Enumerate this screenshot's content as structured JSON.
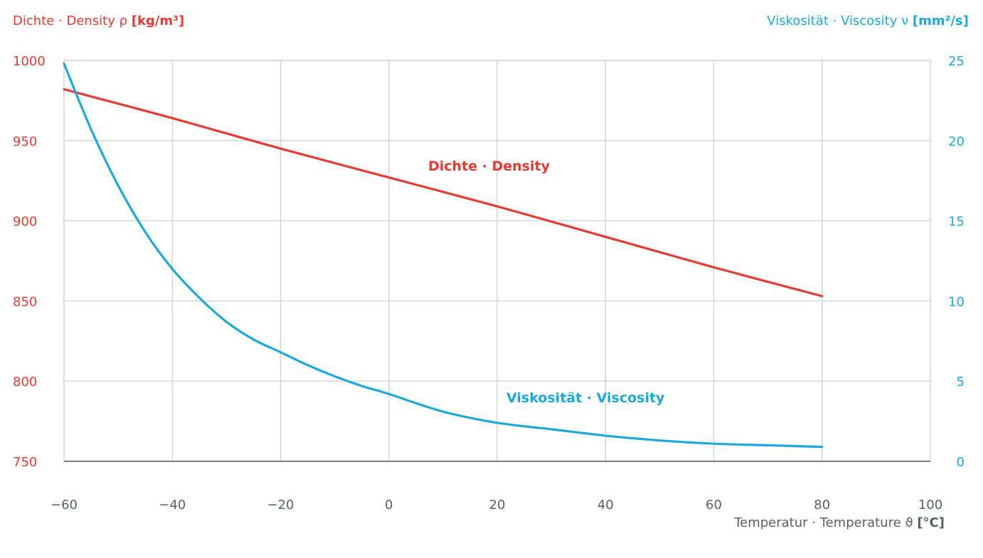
{
  "chart_data": {
    "type": "line",
    "title_left": {
      "main": "Dichte · Density ρ ",
      "unit": "[kg/m³]"
    },
    "title_right": {
      "main": "Viskosität · Viscosity ν ",
      "unit": "[mm²/s]"
    },
    "xlabel": {
      "main": "Temperatur · Temperature ϑ ",
      "unit": "[°C]"
    },
    "x_ticks": [
      "−60",
      "−40",
      "−20",
      "0",
      "20",
      "40",
      "60",
      "80",
      "100"
    ],
    "x_tick_values": [
      -60,
      -40,
      -20,
      0,
      20,
      40,
      60,
      80,
      100
    ],
    "xlim": [
      -60,
      100
    ],
    "y_left_ticks": [
      "750",
      "800",
      "850",
      "900",
      "950",
      "1000"
    ],
    "y_left_tick_values": [
      750,
      800,
      850,
      900,
      950,
      1000
    ],
    "ylim_left": [
      750,
      1000
    ],
    "y_right_ticks": [
      "0",
      "5",
      "10",
      "15",
      "20",
      "25"
    ],
    "y_right_tick_values": [
      0,
      5,
      10,
      15,
      20,
      25
    ],
    "ylim_right": [
      0,
      25
    ],
    "grid": true,
    "series": [
      {
        "name": "Dichte · Density",
        "axis": "left",
        "color": "#e63a32",
        "x": [
          -60,
          -40,
          -20,
          0,
          20,
          40,
          60,
          80
        ],
        "y": [
          982,
          964,
          945,
          927,
          909,
          890,
          871,
          853
        ]
      },
      {
        "name": "Viskosität · Viscosity",
        "axis": "right",
        "color": "#1aa8df",
        "x": [
          -60,
          -55,
          -50,
          -45,
          -40,
          -35,
          -30,
          -25,
          -20,
          -15,
          -10,
          -5,
          0,
          10,
          20,
          30,
          40,
          50,
          60,
          70,
          80
        ],
        "y": [
          24.8,
          20.7,
          17.2,
          14.3,
          12.0,
          10.2,
          8.7,
          7.6,
          6.8,
          6.0,
          5.3,
          4.7,
          4.2,
          3.1,
          2.4,
          2.0,
          1.6,
          1.3,
          1.1,
          1.0,
          0.9
        ]
      }
    ]
  }
}
